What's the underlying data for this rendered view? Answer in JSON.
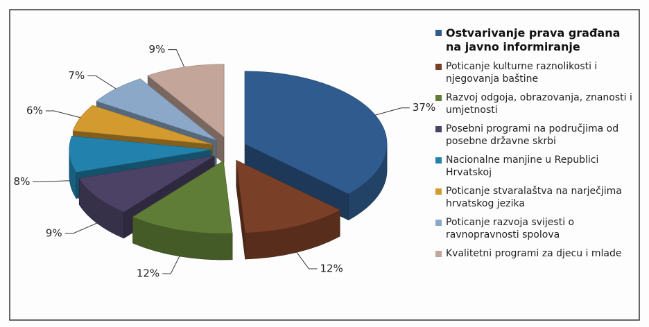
{
  "chart_data": {
    "type": "pie3d",
    "categories": [
      "Ostvarivanje prava građana na javno informiranje",
      "Poticanje kulturne raznolikosti i njegovanja baštine",
      "Razvoj odgoja, obrazovanja, znanosti i umjetnosti",
      "Posebni programi na područjima od posebne državne skrbi",
      "Nacionalne manjine u Republici Hrvatskoj",
      "Poticanje stvaralaštva na narječjima hrvatskog jezika",
      "Poticanje razvoja svijesti o ravnopravnosti spolova",
      "Kvalitetni programi za djecu i mlade"
    ],
    "values": [
      37,
      12,
      12,
      9,
      8,
      6,
      7,
      9
    ],
    "value_labels": [
      "37%",
      "12%",
      "12%",
      "9%",
      "8%",
      "6%",
      "7%",
      "9%"
    ],
    "colors": [
      "#2f5b8e",
      "#7a3f27",
      "#5f7d36",
      "#4c4266",
      "#2282ad",
      "#d39a30",
      "#8ba8c8",
      "#c3a699"
    ],
    "legend": "right"
  }
}
